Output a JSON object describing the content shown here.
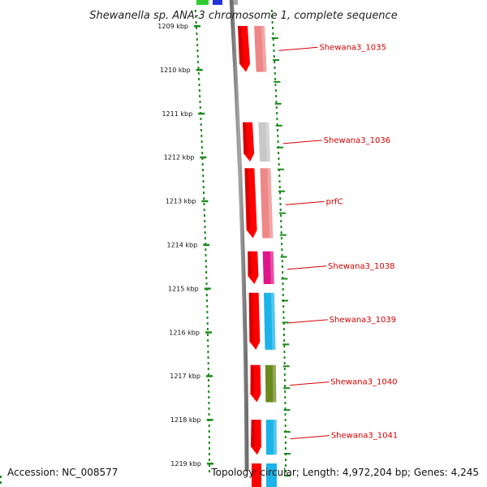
{
  "title": "Shewanella sp. ANA-3 chromosome 1, complete sequence",
  "ticks": [
    "1209 kbp",
    "1210 kbp",
    "1211 kbp",
    "1212 kbp",
    "1213 kbp",
    "1214 kbp",
    "1215 kbp",
    "1216 kbp",
    "1217 kbp",
    "1218 kbp",
    "1219 kbp"
  ],
  "genes": [
    {
      "label": "Shewana3_1035",
      "start_kbp": 1209.0,
      "end_kbp": 1210.05,
      "color": "#ee8888"
    },
    {
      "label": "Shewana3_1036",
      "start_kbp": 1211.2,
      "end_kbp": 1212.1,
      "color": "#c8c8c8"
    },
    {
      "label": "prfC",
      "start_kbp": 1212.25,
      "end_kbp": 1213.85,
      "color": "#ee8888"
    },
    {
      "label": "Shewana3_1038",
      "start_kbp": 1214.15,
      "end_kbp": 1214.9,
      "color": "#e0158a"
    },
    {
      "label": "Shewana3_1039",
      "start_kbp": 1215.1,
      "end_kbp": 1216.4,
      "color": "#1bb3e8"
    },
    {
      "label": "Shewana3_1040",
      "start_kbp": 1216.75,
      "end_kbp": 1217.6,
      "color": "#6b8a1e"
    },
    {
      "label": "Shewana3_1041",
      "start_kbp": 1218.0,
      "end_kbp": 1218.8,
      "color": "#1bb3e8"
    }
  ],
  "strand_color": "#ff0000",
  "footer": {
    "accession": "Accession: NC_008577",
    "topology": "Topology: circular; Length: 4,972,204 bp; Genes: 4,245"
  }
}
